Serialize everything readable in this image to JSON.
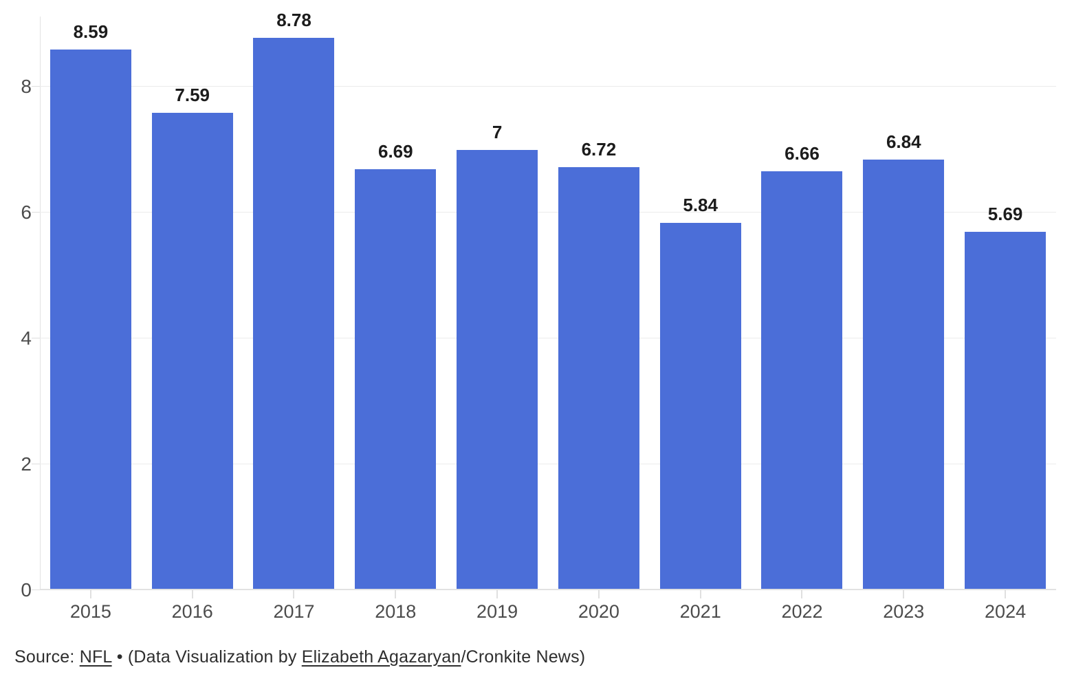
{
  "chart_data": {
    "type": "bar",
    "categories": [
      "2015",
      "2016",
      "2017",
      "2018",
      "2019",
      "2020",
      "2021",
      "2022",
      "2023",
      "2024"
    ],
    "values": [
      8.59,
      7.59,
      8.78,
      6.69,
      7,
      6.72,
      5.84,
      6.66,
      6.84,
      5.69
    ],
    "value_labels": [
      "8.59",
      "7.59",
      "8.78",
      "6.69",
      "7",
      "6.72",
      "5.84",
      "6.66",
      "6.84",
      "5.69"
    ],
    "title": "",
    "xlabel": "",
    "ylabel": "",
    "ylim": [
      0,
      9.115
    ],
    "yticks": [
      0,
      2,
      4,
      6,
      8
    ],
    "grid": true,
    "legend": "none",
    "bar_color": "#4b6ed8"
  },
  "footer": {
    "prefix": "Source: ",
    "source_link": "NFL",
    "middle": " • (Data Visualization by ",
    "author_link": "Elizabeth Agazaryan",
    "suffix": "/Cronkite News)"
  },
  "colors": {
    "bar": "#4b6ed8",
    "value_label": "#1c1c1c",
    "axis_label": "#4c4c4c",
    "gridline": "#ebebeb",
    "axis_line": "#e2e2e2",
    "footer_text": "#2e2e2e",
    "background": "#ffffff"
  }
}
